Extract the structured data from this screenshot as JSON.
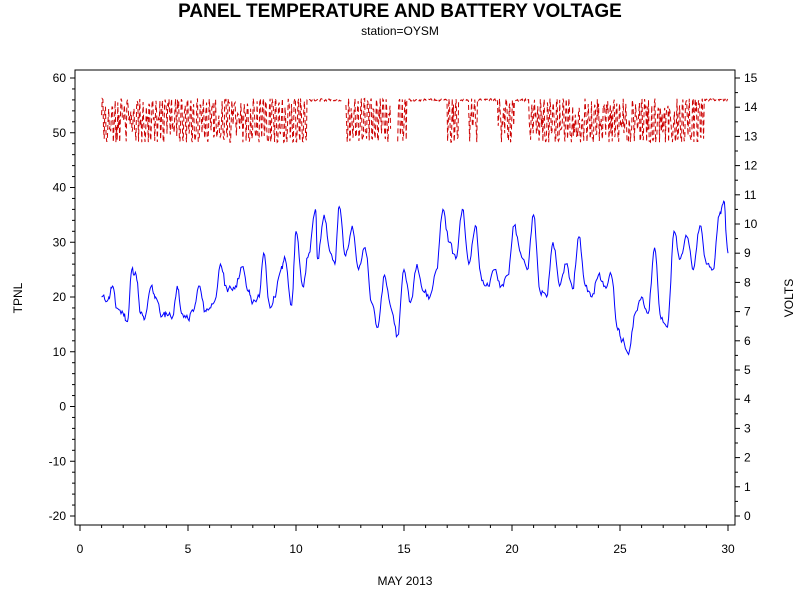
{
  "chart_data": {
    "type": "line",
    "title": "PANEL TEMPERATURE AND BATTERY VOLTAGE",
    "subtitle": "station=OYSM",
    "xlabel": "MAY 2013",
    "ylabel_left": "TPNL",
    "ylabel_right": "VOLTS",
    "xlim": [
      0,
      30
    ],
    "ylim_left": [
      -20,
      60
    ],
    "ylim_right": [
      0,
      15
    ],
    "x_ticks": [
      "0",
      "5",
      "10",
      "15",
      "20",
      "25",
      "30"
    ],
    "y_left_ticks": [
      "-20",
      "-10",
      "0",
      "10",
      "20",
      "30",
      "40",
      "50",
      "60"
    ],
    "y_right_ticks": [
      "0",
      "1",
      "2",
      "3",
      "4",
      "5",
      "6",
      "7",
      "8",
      "9",
      "10",
      "11",
      "12",
      "13",
      "14",
      "15"
    ],
    "grid": false,
    "series": [
      {
        "axis": "left",
        "color": "#0000ff",
        "style": "solid",
        "x": [
          1.0,
          1.3,
          1.5,
          1.7,
          2.0,
          2.2,
          2.4,
          2.6,
          2.8,
          3.0,
          3.3,
          3.5,
          3.8,
          4.0,
          4.3,
          4.5,
          4.7,
          5.0,
          5.3,
          5.5,
          5.8,
          6.0,
          6.3,
          6.5,
          6.8,
          7.0,
          7.2,
          7.5,
          7.8,
          8.0,
          8.3,
          8.5,
          8.8,
          9.0,
          9.3,
          9.5,
          9.8,
          10.0,
          10.3,
          10.6,
          10.9,
          11.0,
          11.3,
          11.6,
          11.8,
          12.0,
          12.3,
          12.6,
          12.9,
          13.2,
          13.5,
          13.8,
          14.1,
          14.4,
          14.7,
          15.0,
          15.3,
          15.6,
          15.9,
          16.2,
          16.5,
          16.8,
          17.1,
          17.4,
          17.7,
          18.0,
          18.3,
          18.6,
          18.9,
          19.2,
          19.5,
          19.8,
          20.1,
          20.4,
          20.7,
          21.0,
          21.3,
          21.6,
          21.9,
          22.2,
          22.5,
          22.8,
          23.1,
          23.4,
          23.7,
          24.0,
          24.3,
          24.6,
          24.9,
          25.1,
          25.4,
          25.7,
          26.0,
          26.3,
          26.6,
          26.9,
          27.2,
          27.5,
          27.8,
          28.1,
          28.4,
          28.7,
          29.0,
          29.3,
          29.6,
          29.8,
          30.0
        ],
        "values": [
          20,
          19.5,
          22,
          18,
          17,
          15.5,
          25,
          24,
          17,
          16,
          22,
          20,
          16.5,
          17,
          16.5,
          22,
          17,
          16,
          18,
          22,
          17.5,
          18,
          20,
          26,
          21.5,
          21.5,
          22,
          25.5,
          21,
          19,
          20,
          28,
          18,
          20,
          25,
          27,
          18.5,
          32,
          22,
          28,
          36,
          27,
          35,
          28,
          26,
          36.5,
          27.5,
          33,
          25,
          29,
          19,
          14.5,
          24,
          18,
          13,
          25,
          19,
          26,
          21,
          20,
          25,
          36,
          30,
          27,
          36,
          26,
          33,
          23,
          22,
          25,
          22,
          24,
          33,
          28,
          25,
          35,
          21,
          20,
          30,
          22,
          26,
          21.5,
          31,
          22,
          20,
          24,
          22,
          24,
          14,
          12,
          9.5,
          17,
          20,
          17,
          29,
          16,
          14.5,
          32,
          27,
          31,
          25,
          33,
          26,
          25,
          35,
          37.5,
          28
        ]
      },
      {
        "axis": "right",
        "color": "#cc0000",
        "style": "dashed",
        "x_range": [
          1.0,
          30.0
        ],
        "low": 12.8,
        "high": 14.3,
        "plateaus": [
          [
            10.5,
            12.2
          ],
          [
            15.1,
            17.0
          ],
          [
            17.5,
            18.0
          ],
          [
            18.4,
            19.3
          ],
          [
            20.1,
            20.8
          ],
          [
            28.9,
            30.0
          ]
        ],
        "plateau_value": 14.25,
        "gaps": [
          [
            12.1,
            12.3
          ],
          [
            14.4,
            14.7
          ]
        ]
      }
    ]
  }
}
